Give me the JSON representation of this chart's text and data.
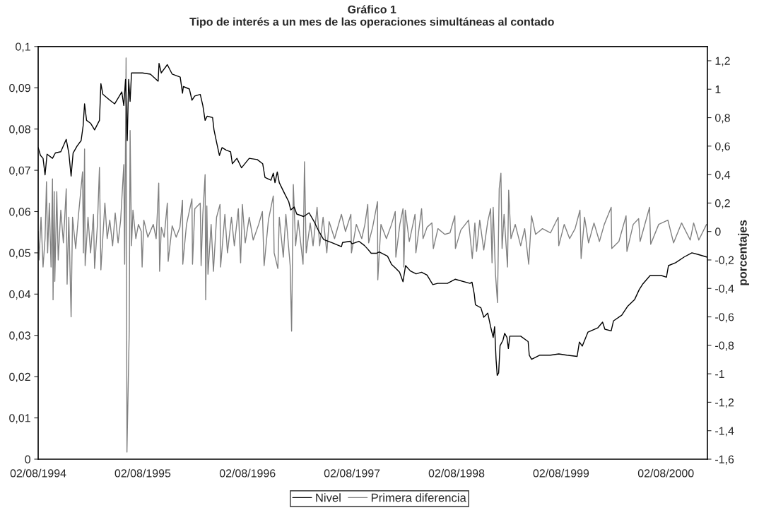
{
  "chart_data": {
    "type": "line",
    "title": "Gráfico 1",
    "subtitle": "Tipo de interés a un mes de las operaciones simultáneas al contado",
    "y2label": "porcentajes",
    "xlim": [
      "1994-08-02",
      "2000-12-25"
    ],
    "xticks": [
      {
        "value": "1994-08-02",
        "label": "02/08/1994"
      },
      {
        "value": "1995-08-02",
        "label": "02/08/1995"
      },
      {
        "value": "1996-08-02",
        "label": "02/08/1996"
      },
      {
        "value": "1997-08-02",
        "label": "02/08/1997"
      },
      {
        "value": "1998-08-02",
        "label": "02/08/1998"
      },
      {
        "value": "1999-08-02",
        "label": "02/08/1999"
      },
      {
        "value": "2000-08-02",
        "label": "02/08/2000"
      }
    ],
    "ylim": [
      0,
      0.1
    ],
    "yticks": [
      0,
      {
        "value": 0.01,
        "label": "0,01"
      },
      {
        "value": 0.02,
        "label": "0,02"
      },
      {
        "value": 0.03,
        "label": "0,03"
      },
      {
        "value": 0.04,
        "label": "0,04"
      },
      {
        "value": 0.05,
        "label": "0,05"
      },
      {
        "value": 0.06,
        "label": "0,06"
      },
      {
        "value": 0.07,
        "label": "0,07"
      },
      {
        "value": 0.08,
        "label": "0,08"
      },
      {
        "value": 0.09,
        "label": "0,09"
      },
      {
        "value": 0.1,
        "label": "0,1"
      }
    ],
    "y2lim": [
      -1.6,
      1.3
    ],
    "y2ticks": [
      {
        "value": -1.6,
        "label": "-1,6"
      },
      {
        "value": -1.4,
        "label": "-1,4"
      },
      {
        "value": -1.2,
        "label": "-1,2"
      },
      {
        "value": -1,
        "label": "-1"
      },
      {
        "value": -0.8,
        "label": "-0,8"
      },
      {
        "value": -0.6,
        "label": "-0,6"
      },
      {
        "value": -0.4,
        "label": "-0,4"
      },
      {
        "value": -0.2,
        "label": "-0,2"
      },
      0,
      {
        "value": 0.2,
        "label": "0,2"
      },
      {
        "value": 0.4,
        "label": "0,4"
      },
      {
        "value": 0.6,
        "label": "0,6"
      },
      {
        "value": 0.8,
        "label": "0,8"
      },
      1,
      {
        "value": 1.2,
        "label": "1,2"
      }
    ],
    "grid": false,
    "legend": "bottom",
    "marker": "none",
    "line_style": "solid",
    "series": [
      {
        "name": "Nivel",
        "color": "#000000",
        "x": [
          "1994-08-02",
          "1994-08-10",
          "1994-08-19",
          "1994-08-26",
          "1994-09-02",
          "1994-09-21",
          "1994-10-01",
          "1994-10-20",
          "1994-11-08",
          "1994-11-17",
          "1994-11-25",
          "1994-12-02",
          "1994-12-16",
          "1994-12-30",
          "1995-01-06",
          "1995-01-11",
          "1995-01-18",
          "1995-02-01",
          "1995-02-15",
          "1995-03-04",
          "1995-03-09",
          "1995-03-16",
          "1995-04-09",
          "1995-04-26",
          "1995-05-21",
          "1995-05-28",
          "1995-06-03",
          "1995-06-09",
          "1995-06-14",
          "1995-06-19",
          "1995-06-24",
          "1995-07-13",
          "1995-08-01",
          "1995-08-29",
          "1995-09-25",
          "1995-09-28",
          "1995-10-06",
          "1995-10-27",
          "1995-11-13",
          "1995-12-11",
          "1995-12-19",
          "1995-12-22",
          "1996-01-12",
          "1996-01-21",
          "1996-01-31",
          "1996-02-19",
          "1996-02-28",
          "1996-03-07",
          "1996-03-14",
          "1996-04-02",
          "1996-04-07",
          "1996-04-16",
          "1996-04-26",
          "1996-05-05",
          "1996-05-19",
          "1996-06-04",
          "1996-06-10",
          "1996-06-26",
          "1996-07-12",
          "1996-08-08",
          "1996-09-05",
          "1996-09-24",
          "1996-10-02",
          "1996-10-23",
          "1996-10-31",
          "1996-11-06",
          "1996-11-14",
          "1996-11-21",
          "1996-12-10",
          "1996-12-24",
          "1996-12-31",
          "1997-01-12",
          "1997-01-21",
          "1997-02-14",
          "1997-03-05",
          "1997-03-24",
          "1997-04-06",
          "1997-04-25",
          "1997-05-23",
          "1997-06-26",
          "1997-06-30",
          "1997-07-27",
          "1997-08-02",
          "1997-08-26",
          "1997-09-14",
          "1997-09-26",
          "1997-10-08",
          "1997-10-27",
          "1997-11-05",
          "1997-12-04",
          "1997-12-18",
          "1998-01-01",
          "1998-01-15",
          "1998-01-27",
          "1998-02-05",
          "1998-02-22",
          "1998-03-14",
          "1998-04-02",
          "1998-04-21",
          "1998-05-11",
          "1998-05-28",
          "1998-07-01",
          "1998-07-28",
          "1998-09-18",
          "1998-09-25",
          "1998-10-03",
          "1998-10-07",
          "1998-10-26",
          "1998-11-05",
          "1998-11-19",
          "1998-11-29",
          "1998-12-08",
          "1998-12-13",
          "1998-12-18",
          "1998-12-22",
          "1998-12-27",
          "1999-01-01",
          "1999-01-11",
          "1999-01-17",
          "1999-01-25",
          "1999-01-30",
          "1999-02-04",
          "1999-02-23",
          "1999-03-14",
          "1999-04-09",
          "1999-04-13",
          "1999-04-21",
          "1999-05-19",
          "1999-06-26",
          "1999-07-25",
          "1999-08-22",
          "1999-09-27",
          "1999-10-05",
          "1999-10-15",
          "1999-11-04",
          "1999-12-08",
          "1999-12-25",
          "2000-01-02",
          "2000-01-24",
          "2000-02-01",
          "2000-03-01",
          "2000-03-21",
          "2000-04-15",
          "2000-05-01",
          "2000-05-14",
          "2000-06-08",
          "2000-07-17",
          "2000-08-04",
          "2000-08-11",
          "2000-09-05",
          "2000-10-05",
          "2000-11-01",
          "2000-11-23",
          "2000-12-22"
        ],
        "values": [
          0.0755,
          0.0736,
          0.0729,
          0.0689,
          0.0739,
          0.0729,
          0.0742,
          0.0745,
          0.0775,
          0.0742,
          0.0686,
          0.0742,
          0.0759,
          0.0772,
          0.0808,
          0.0861,
          0.0821,
          0.0814,
          0.0798,
          0.0821,
          0.091,
          0.0884,
          0.087,
          0.0861,
          0.089,
          0.0857,
          0.092,
          0.0772,
          0.092,
          0.0867,
          0.0936,
          0.0936,
          0.0936,
          0.0933,
          0.0916,
          0.0959,
          0.0936,
          0.0956,
          0.0933,
          0.0926,
          0.0887,
          0.0903,
          0.0897,
          0.087,
          0.088,
          0.0884,
          0.0857,
          0.0821,
          0.0831,
          0.0828,
          0.0798,
          0.0768,
          0.0736,
          0.0755,
          0.0749,
          0.0745,
          0.0716,
          0.0729,
          0.0706,
          0.0729,
          0.0726,
          0.0716,
          0.0683,
          0.0676,
          0.0693,
          0.067,
          0.0696,
          0.067,
          0.0643,
          0.0624,
          0.0604,
          0.0611,
          0.0594,
          0.0588,
          0.0597,
          0.0574,
          0.0555,
          0.0532,
          0.0525,
          0.0515,
          0.0525,
          0.0528,
          0.0522,
          0.0528,
          0.0518,
          0.0509,
          0.0499,
          0.0499,
          0.0502,
          0.0492,
          0.0472,
          0.0463,
          0.0453,
          0.043,
          0.0469,
          0.0456,
          0.0449,
          0.0453,
          0.0446,
          0.0423,
          0.0426,
          0.0426,
          0.0436,
          0.0426,
          0.0429,
          0.04,
          0.0374,
          0.0367,
          0.0344,
          0.0354,
          0.0321,
          0.0295,
          0.0321,
          0.0242,
          0.0203,
          0.0209,
          0.0275,
          0.0288,
          0.0305,
          0.0295,
          0.0268,
          0.0298,
          0.0298,
          0.0298,
          0.0285,
          0.0252,
          0.0242,
          0.0252,
          0.0252,
          0.0255,
          0.0252,
          0.0249,
          0.0284,
          0.0274,
          0.0308,
          0.0318,
          0.0332,
          0.0315,
          0.0311,
          0.0335,
          0.0349,
          0.037,
          0.0387,
          0.0411,
          0.0425,
          0.0445,
          0.0445,
          0.0441,
          0.0469,
          0.0476,
          0.049,
          0.05,
          0.0496,
          0.049
        ]
      },
      {
        "name": "Primera diferencia",
        "color": "#808080",
        "axis": "y2",
        "x": [
          "1994-08-02",
          "1994-08-05",
          "1994-08-12",
          "1994-08-19",
          "1994-08-26",
          "1994-08-31",
          "1994-09-04",
          "1994-09-10",
          "1994-09-16",
          "1994-09-21",
          "1994-09-23",
          "1994-09-27",
          "1994-09-29",
          "1994-10-06",
          "1994-10-11",
          "1994-10-20",
          "1994-10-29",
          "1994-11-08",
          "1994-11-11",
          "1994-11-17",
          "1994-11-25",
          "1994-11-30",
          "1994-12-11",
          "1994-12-21",
          "1995-01-04",
          "1995-01-07",
          "1995-01-11",
          "1995-01-13",
          "1995-01-23",
          "1995-02-01",
          "1995-02-11",
          "1995-02-15",
          "1995-02-25",
          "1995-03-04",
          "1995-03-09",
          "1995-03-23",
          "1995-03-31",
          "1995-04-09",
          "1995-04-19",
          "1995-04-28",
          "1995-05-08",
          "1995-05-17",
          "1995-05-28",
          "1995-05-31",
          "1995-06-05",
          "1995-06-08",
          "1995-06-16",
          "1995-06-19",
          "1995-06-24",
          "1995-06-29",
          "1995-07-09",
          "1995-07-18",
          "1995-07-28",
          "1995-07-31",
          "1995-08-06",
          "1995-08-20",
          "1995-09-08",
          "1995-09-18",
          "1995-09-27",
          "1995-09-30",
          "1995-10-06",
          "1995-10-16",
          "1995-10-27",
          "1995-10-30",
          "1995-11-13",
          "1995-11-27",
          "1995-12-10",
          "1995-12-19",
          "1995-12-20",
          "1996-01-02",
          "1996-01-21",
          "1996-01-23",
          "1996-01-31",
          "1996-02-19",
          "1996-02-22",
          "1996-02-28",
          "1996-03-07",
          "1996-03-09",
          "1996-03-13",
          "1996-03-17",
          "1996-03-28",
          "1996-04-05",
          "1996-04-16",
          "1996-04-28",
          "1996-04-30",
          "1996-05-15",
          "1996-05-24",
          "1996-06-07",
          "1996-06-17",
          "1996-07-01",
          "1996-07-09",
          "1996-07-15",
          "1996-07-25",
          "1996-08-08",
          "1996-08-22",
          "1996-09-10",
          "1996-09-23",
          "1996-09-29",
          "1996-10-14",
          "1996-10-31",
          "1996-11-03",
          "1996-11-16",
          "1996-11-21",
          "1996-12-05",
          "1996-12-14",
          "1996-12-29",
          "1997-01-03",
          "1997-01-09",
          "1997-01-17",
          "1997-01-26",
          "1997-02-12",
          "1997-02-17",
          "1997-02-23",
          "1997-03-09",
          "1997-03-19",
          "1997-04-02",
          "1997-04-11",
          "1997-04-23",
          "1997-05-06",
          "1997-05-14",
          "1997-06-02",
          "1997-06-26",
          "1997-07-10",
          "1997-07-29",
          "1997-07-31",
          "1997-08-17",
          "1997-09-05",
          "1997-09-16",
          "1997-09-26",
          "1997-09-29",
          "1997-10-13",
          "1997-10-30",
          "1997-10-31",
          "1997-11-11",
          "1997-11-30",
          "1997-12-18",
          "1997-12-31",
          "1998-01-02",
          "1998-01-16",
          "1998-01-27",
          "1998-01-30",
          "1998-02-04",
          "1998-02-18",
          "1998-03-10",
          "1998-03-13",
          "1998-04-02",
          "1998-04-07",
          "1998-04-21",
          "1998-05-08",
          "1998-05-13",
          "1998-05-29",
          "1998-06-22",
          "1998-07-10",
          "1998-07-27",
          "1998-07-29",
          "1998-08-17",
          "1998-09-13",
          "1998-09-26",
          "1998-10-05",
          "1998-10-11",
          "1998-10-22",
          "1998-11-05",
          "1998-11-19",
          "1998-11-29",
          "1998-12-04",
          "1998-12-08",
          "1998-12-16",
          "1998-12-23",
          "1998-12-29",
          "1999-01-04",
          "1999-01-08",
          "1999-01-15",
          "1999-01-27",
          "1999-01-31",
          "1999-02-08",
          "1999-02-23",
          "1999-03-14",
          "1999-03-28",
          "1999-04-11",
          "1999-04-21",
          "1999-05-05",
          "1999-05-29",
          "1999-06-26",
          "1999-07-23",
          "1999-07-25",
          "1999-08-13",
          "1999-09-01",
          "1999-09-20",
          "1999-10-07",
          "1999-10-11",
          "1999-10-23",
          "1999-11-06",
          "1999-11-25",
          "1999-12-14",
          "1999-12-31",
          "2000-01-24",
          "2000-01-26",
          "2000-02-20",
          "2000-03-16",
          "2000-03-19",
          "2000-04-10",
          "2000-04-29",
          "2000-05-04",
          "2000-06-06",
          "2000-06-10",
          "2000-07-08",
          "2000-08-09",
          "2000-08-29",
          "2000-09-26",
          "2000-10-26",
          "2000-11-07",
          "2000-11-25",
          "2000-12-22"
        ],
        "values": [
          0,
          -0.2,
          0.1,
          -0.25,
          -0.05,
          0.35,
          -0.15,
          0.2,
          -0.25,
          0.37,
          -0.48,
          0.28,
          -0.35,
          0.28,
          -0.2,
          0.15,
          -0.08,
          0.3,
          -0.37,
          0.1,
          -0.6,
          0.1,
          -0.12,
          0.12,
          0.42,
          -0.15,
          0.58,
          -0.24,
          0.1,
          -0.15,
          0.12,
          -0.26,
          0.05,
          0.45,
          -0.27,
          0.2,
          -0.05,
          0.08,
          -0.1,
          0.13,
          -0.08,
          0.08,
          0.47,
          -0.23,
          1.22,
          -1.55,
          -0.7,
          0.71,
          -0.1,
          0.15,
          -0.05,
          0.05,
          0,
          -0.25,
          0.08,
          -0.04,
          0.05,
          -0.05,
          0.34,
          -0.28,
          0.03,
          -0.04,
          0.2,
          -0.21,
          0.04,
          -0.04,
          0.03,
          0.22,
          -0.23,
          0.05,
          0.23,
          -0.23,
          0.16,
          0.2,
          -0.24,
          0.12,
          0.4,
          -0.48,
          0.18,
          -0.3,
          0.05,
          -0.28,
          0.1,
          0.19,
          -0.25,
          0.12,
          -0.15,
          0.1,
          -0.1,
          0.16,
          -0.22,
          0.19,
          -0.08,
          0.1,
          -0.06,
          0.05,
          0.14,
          -0.24,
          0.08,
          0.25,
          -0.15,
          -0.26,
          0.1,
          -0.18,
          0.12,
          -0.24,
          -0.7,
          0.33,
          -0.1,
          0.08,
          -0.23,
          0.49,
          -0.15,
          0.06,
          -0.1,
          0.17,
          -0.1,
          0.1,
          -0.15,
          0.07,
          -0.05,
          0.12,
          0,
          0.12,
          -0.15,
          0.05,
          -0.05,
          0.05,
          0.19,
          -0.08,
          0.03,
          0.21,
          -0.34,
          0.05,
          -0.05,
          0.05,
          0.14,
          -0.18,
          0.05,
          0.16,
          -0.25,
          0.15,
          -0.07,
          0.12,
          -0.15,
          0.16,
          -0.05,
          0.03,
          0.06,
          -0.12,
          0.02,
          -0.02,
          -0.01,
          0.11,
          -0.12,
          0.01,
          0.08,
          -0.19,
          0.06,
          -0.14,
          0.08,
          -0.13,
          0.07,
          0.16,
          -0.22,
          0.17,
          -0.3,
          -0.5,
          0.3,
          0.41,
          -0.12,
          0.12,
          -0.25,
          0.29,
          -0.05,
          0.05,
          -0.1,
          0.02,
          -0.23,
          0.11,
          -0.02,
          0.02,
          -0.01,
          0.1,
          -0.1,
          0.05,
          -0.05,
          0.02,
          0.15,
          -0.19,
          0.1,
          -0.08,
          0.06,
          -0.07,
          0.05,
          0.17,
          -0.12,
          -0.07,
          0.11,
          -0.14,
          0.05,
          0.09,
          -0.07,
          0.17,
          -0.09,
          0.05,
          0.08,
          -0.08,
          0.06,
          -0.06,
          0.06,
          -0.06,
          0.05
        ]
      }
    ]
  }
}
